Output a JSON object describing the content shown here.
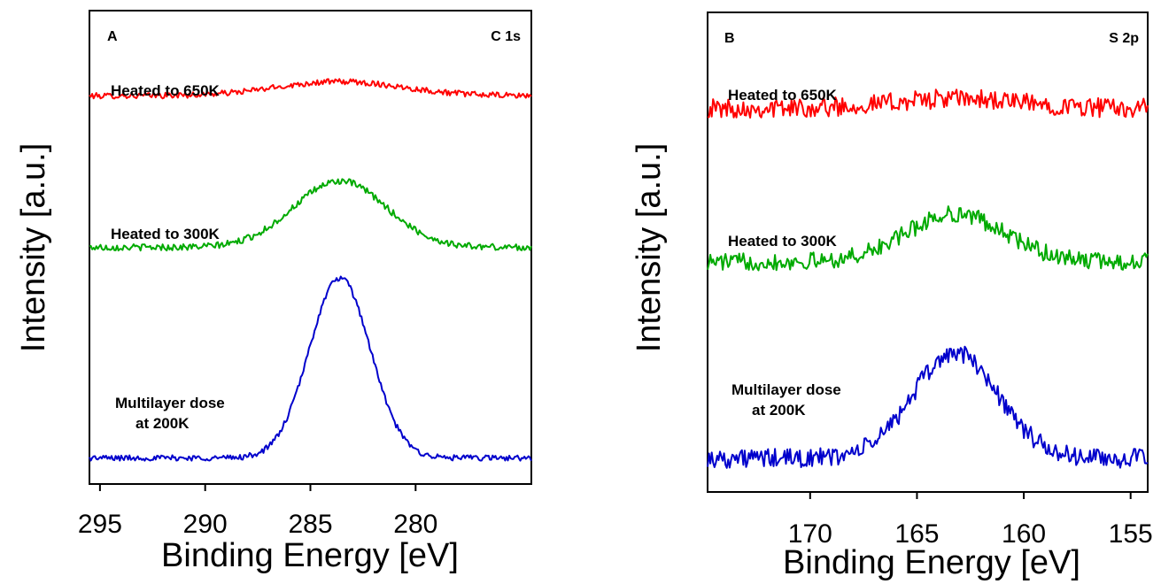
{
  "chart_data": [
    {
      "type": "line",
      "panel_label": "A",
      "corner_label": "C 1s",
      "xlabel": "Binding Energy [eV]",
      "ylabel": "Intensity [a.u.]",
      "xlim": [
        295.5,
        274.5
      ],
      "x_reversed": true,
      "xticks": [
        295,
        290,
        285,
        280
      ],
      "yticks_shown": false,
      "peak_center": 283.6,
      "series": [
        {
          "name": "Heated to 650K",
          "color": "#ff0000",
          "baseline": 0.82,
          "peak_height": 0.03,
          "peak_width": 3.0,
          "noise": 0.006,
          "slope": 0.0
        },
        {
          "name": "Heated to 300K",
          "color": "#00aa00",
          "baseline": 0.5,
          "peak_height": 0.14,
          "peak_width": 2.2,
          "noise": 0.007,
          "slope": 0.0
        },
        {
          "name": "Multilayer dose\nat 200K",
          "color": "#0000cc",
          "baseline": 0.055,
          "peak_height": 0.38,
          "peak_width": 1.45,
          "noise": 0.006,
          "slope": 0.0
        }
      ]
    },
    {
      "type": "line",
      "panel_label": "B",
      "corner_label": "S 2p",
      "xlabel": "Binding Energy [eV]",
      "ylabel": "Intensity [a.u.]",
      "xlim": [
        174.8,
        154.2
      ],
      "x_reversed": true,
      "xticks": [
        170,
        165,
        160,
        155
      ],
      "yticks_shown": false,
      "peak_center": 163.2,
      "series": [
        {
          "name": "Heated to 650K",
          "color": "#ff0000",
          "baseline": 0.8,
          "peak_height": 0.02,
          "peak_width": 3.0,
          "noise": 0.02,
          "slope": 0.0
        },
        {
          "name": "Heated to 300K",
          "color": "#00aa00",
          "baseline": 0.48,
          "peak_height": 0.1,
          "peak_width": 2.3,
          "noise": 0.018,
          "slope": 0.0
        },
        {
          "name": "Multilayer dose\nat 200K",
          "color": "#0000cc",
          "baseline": 0.07,
          "peak_height": 0.22,
          "peak_width": 2.0,
          "noise": 0.02,
          "slope": 0.0
        }
      ]
    }
  ]
}
